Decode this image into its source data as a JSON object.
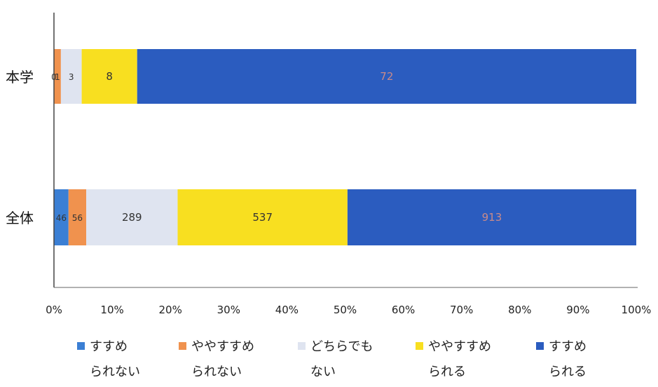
{
  "chart_data": {
    "type": "bar",
    "stacked": "percent",
    "orientation": "horizontal",
    "categories": [
      "本学",
      "全体"
    ],
    "xlim": [
      0,
      100
    ],
    "xticks": [
      "0%",
      "10%",
      "20%",
      "30%",
      "40%",
      "50%",
      "60%",
      "70%",
      "80%",
      "90%",
      "100%"
    ],
    "grid": false,
    "legend_position": "bottom",
    "series": [
      {
        "name_line1": "すすめ",
        "name_line2": "られない",
        "color": "#3b7fd4",
        "values": [
          0,
          46
        ],
        "labels": [
          "0",
          "46"
        ]
      },
      {
        "name_line1": "ややすすめ",
        "name_line2": "られない",
        "color": "#f0924e",
        "values": [
          1,
          56
        ],
        "labels": [
          "1",
          "56"
        ]
      },
      {
        "name_line1": "どちらでも",
        "name_line2": "ない",
        "color": "#dfe4f0",
        "values": [
          3,
          289
        ],
        "labels": [
          "3",
          "289"
        ]
      },
      {
        "name_line1": "ややすすめ",
        "name_line2": "られる",
        "color": "#f8df20",
        "values": [
          8,
          537
        ],
        "labels": [
          "8",
          "537"
        ]
      },
      {
        "name_line1": "すすめ",
        "name_line2": "られる",
        "color": "#2b5cbf",
        "values": [
          72,
          913
        ],
        "labels": [
          "72",
          "913"
        ]
      }
    ]
  }
}
